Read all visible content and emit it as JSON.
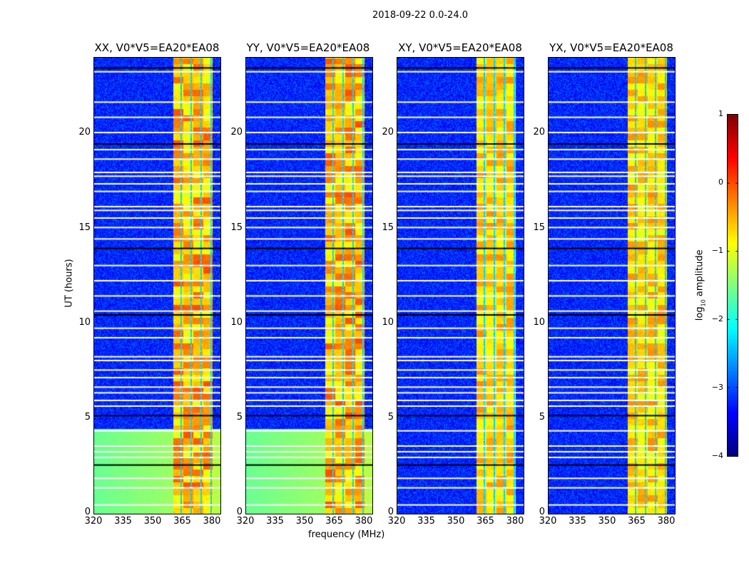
{
  "suptitle": "2018-09-22 0.0-24.0",
  "xlabel": "frequency (MHz)",
  "ylabel": "UT (hours)",
  "colorbar": {
    "label_prefix": "log",
    "label_sub": "10",
    "label_suffix": " amplitude",
    "ticks": [
      "1",
      "0",
      "−1",
      "−2",
      "−3",
      "−4"
    ],
    "range": [
      -4,
      1
    ],
    "colormap": "jet"
  },
  "xticks": [
    "320",
    "335",
    "350",
    "365",
    "380"
  ],
  "yticks": [
    "0",
    "5",
    "10",
    "15",
    "20"
  ],
  "chart_data": [
    {
      "type": "heatmap",
      "title": "XX, V0*V5=EA20*EA08",
      "xlim": [
        320,
        384
      ],
      "ylim": [
        0,
        24
      ],
      "band_MHz": [
        360,
        380
      ],
      "band_log_amp": [
        -1,
        0
      ],
      "background_log_amp": -3.2,
      "low_time_background": {
        "hours": [
          0,
          4.5
        ],
        "log_amp": -1.6
      }
    },
    {
      "type": "heatmap",
      "title": "YY, V0*V5=EA20*EA08",
      "xlim": [
        320,
        384
      ],
      "ylim": [
        0,
        24
      ],
      "band_MHz": [
        360,
        380
      ],
      "band_log_amp": [
        -1,
        0
      ],
      "background_log_amp": -3.2,
      "low_time_background": {
        "hours": [
          0,
          4.5
        ],
        "log_amp": -1.6
      }
    },
    {
      "type": "heatmap",
      "title": "XY, V0*V5=EA20*EA08",
      "xlim": [
        320,
        384
      ],
      "ylim": [
        0,
        24
      ],
      "band_MHz": [
        360,
        380
      ],
      "band_log_amp": [
        -1,
        0
      ],
      "background_log_amp": -3.2
    },
    {
      "type": "heatmap",
      "title": "YX, V0*V5=EA20*EA08",
      "xlim": [
        320,
        384
      ],
      "ylim": [
        0,
        24
      ],
      "band_MHz": [
        360,
        380
      ],
      "band_log_amp": [
        -1,
        0
      ],
      "background_log_amp": -3.2
    }
  ],
  "flagged_hours": [
    0.5,
    1.4,
    1.9,
    3.0,
    3.3,
    3.6,
    4.4,
    5.7,
    6.0,
    6.4,
    6.7,
    7.2,
    7.6,
    8.1,
    8.3,
    9.3,
    9.8,
    10.7,
    11.5,
    12.3,
    13.1,
    14.5,
    15.1,
    15.6,
    16.0,
    16.2,
    17.0,
    17.4,
    17.8,
    18.0,
    18.7,
    19.2,
    20.1,
    20.9,
    21.7,
    23.3
  ],
  "dark_hours": [
    2.6,
    5.2,
    10.5,
    14.0,
    19.5,
    23.5
  ]
}
